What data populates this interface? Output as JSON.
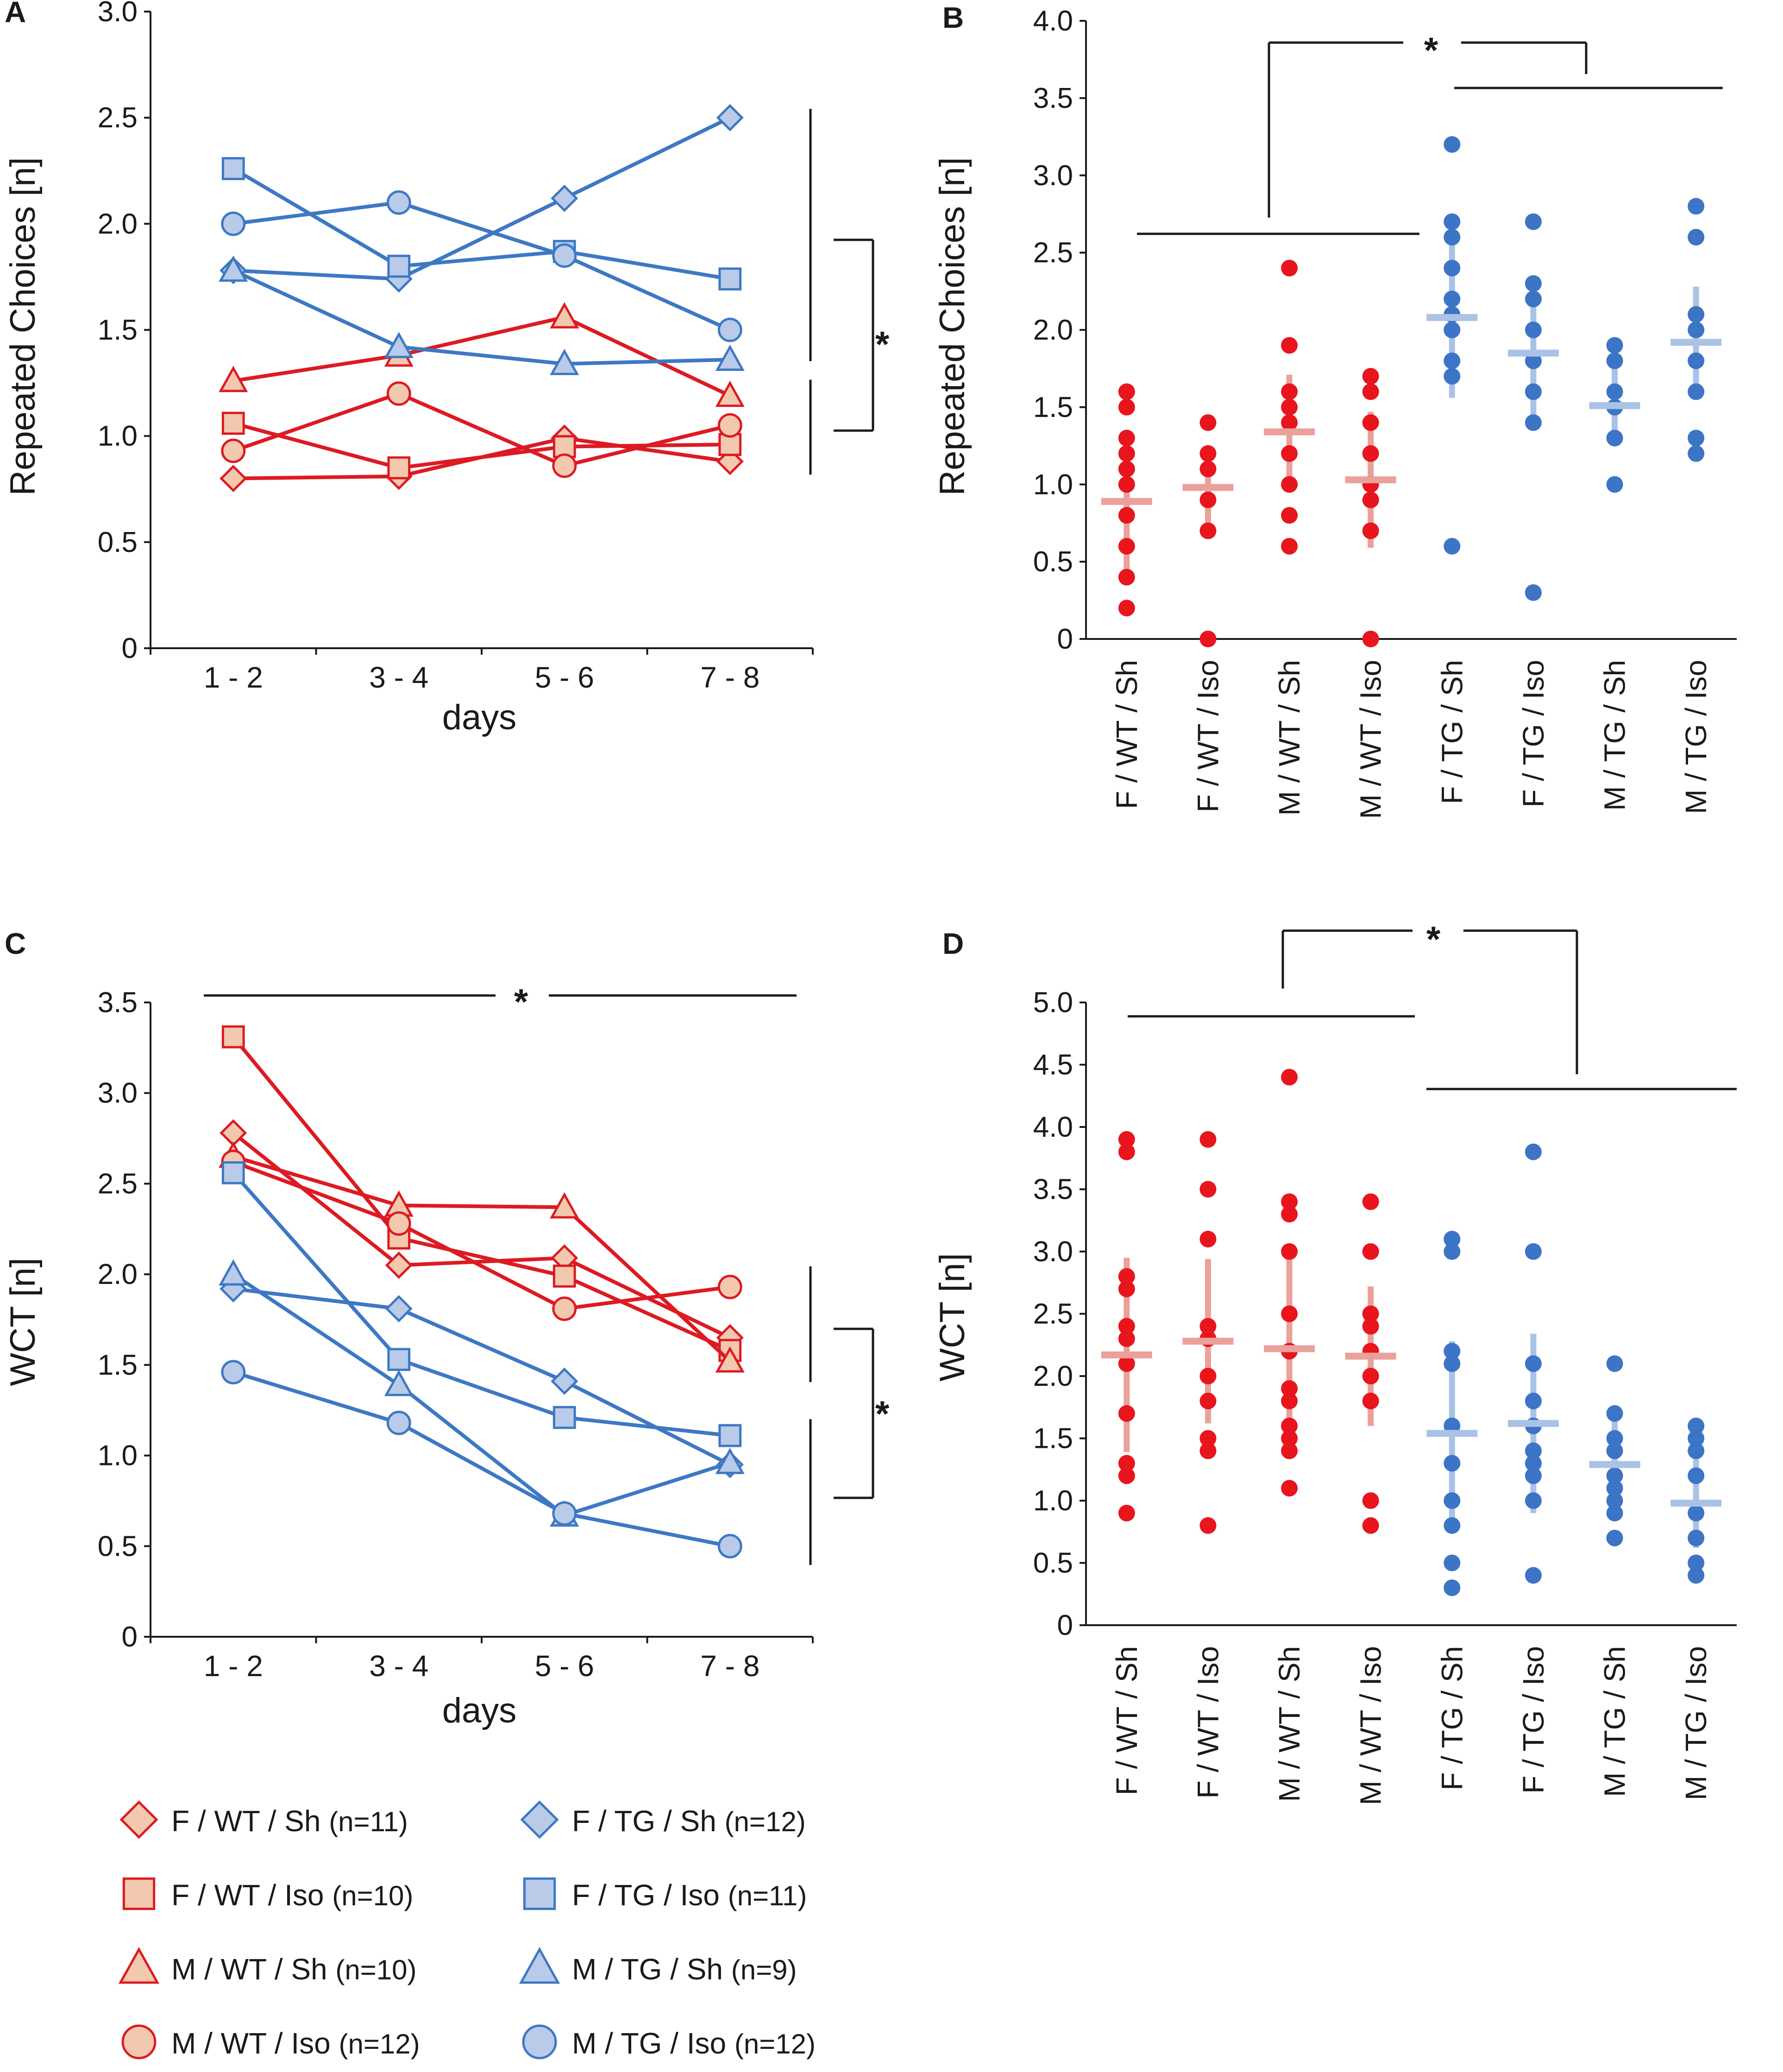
{
  "colors": {
    "wt_line": "#dd1a22",
    "wt_marker_fill": "#f2c9ae",
    "wt_marker_stroke": "#dd1a22",
    "tg_line": "#3d78c4",
    "tg_marker_fill": "#b9cbe9",
    "tg_marker_stroke": "#3d78c4",
    "wt_dot": "#e8151c",
    "tg_dot": "#3c74c6",
    "wt_mean": "#eaa19b",
    "tg_mean": "#a9c2e6",
    "axis": "#1a1a1a"
  },
  "panels": {
    "A": {
      "letter": "A",
      "ylabel": "Repeated Choices [n]",
      "xlabel": "days"
    },
    "B": {
      "letter": "B",
      "ylabel": "Repeated Choices [n]"
    },
    "C": {
      "letter": "C",
      "ylabel": "WCT [n]",
      "xlabel": "days"
    },
    "D": {
      "letter": "D",
      "ylabel": "WCT [n]"
    }
  },
  "significance_marker": "*",
  "legend": [
    {
      "group": "F / WT / Sh",
      "n": "(n=11)",
      "shape": "diamond",
      "genotype": "WT"
    },
    {
      "group": "F / WT / Iso",
      "n": "(n=10)",
      "shape": "square",
      "genotype": "WT"
    },
    {
      "group": "M / WT / Sh",
      "n": "(n=10)",
      "shape": "triangle",
      "genotype": "WT"
    },
    {
      "group": "M / WT / Iso",
      "n": "(n=12)",
      "shape": "circle",
      "genotype": "WT"
    },
    {
      "group": "F / TG / Sh",
      "n": "(n=12)",
      "shape": "diamond",
      "genotype": "TG"
    },
    {
      "group": "F / TG / Iso",
      "n": "(n=11)",
      "shape": "square",
      "genotype": "TG"
    },
    {
      "group": "M / TG / Sh",
      "n": "(n=9)",
      "shape": "triangle",
      "genotype": "TG"
    },
    {
      "group": "M / TG / Iso",
      "n": "(n=12)",
      "shape": "circle",
      "genotype": "TG"
    }
  ],
  "chart_data": [
    {
      "panel": "A",
      "type": "line",
      "xlabel": "days",
      "ylabel": "Repeated Choices [n]",
      "categories": [
        "1 - 2",
        "3 - 4",
        "5 - 6",
        "7 - 8"
      ],
      "ylim": [
        0,
        3.0
      ],
      "yticks": [
        0,
        0.5,
        1.0,
        1.5,
        2.0,
        2.5,
        3.0
      ],
      "ytick_labels": [
        "0",
        "0.5",
        "1.0",
        "1.5",
        "2.0",
        "2.5",
        "3.0"
      ],
      "series": [
        {
          "name": "F / WT / Sh",
          "shape": "diamond",
          "genotype": "WT",
          "values": [
            0.8,
            0.81,
            0.99,
            0.88
          ]
        },
        {
          "name": "F / WT / Iso",
          "shape": "square",
          "genotype": "WT",
          "values": [
            1.06,
            0.85,
            0.95,
            0.96
          ]
        },
        {
          "name": "M / WT / Sh",
          "shape": "triangle",
          "genotype": "WT",
          "values": [
            1.26,
            1.38,
            1.56,
            1.19
          ]
        },
        {
          "name": "M / WT / Iso",
          "shape": "circle",
          "genotype": "WT",
          "values": [
            0.93,
            1.2,
            0.86,
            1.05
          ]
        },
        {
          "name": "F / TG / Sh",
          "shape": "diamond",
          "genotype": "TG",
          "values": [
            1.78,
            1.74,
            2.12,
            2.5
          ]
        },
        {
          "name": "F / TG / Iso",
          "shape": "square",
          "genotype": "TG",
          "values": [
            2.26,
            1.8,
            1.87,
            1.74
          ]
        },
        {
          "name": "M / TG / Sh",
          "shape": "triangle",
          "genotype": "TG",
          "values": [
            1.78,
            1.42,
            1.34,
            1.36
          ]
        },
        {
          "name": "M / TG / Iso",
          "shape": "circle",
          "genotype": "TG",
          "values": [
            2.0,
            2.1,
            1.85,
            1.5
          ]
        }
      ]
    },
    {
      "panel": "B",
      "type": "scatter",
      "ylabel": "Repeated Choices [n]",
      "categories": [
        "F / WT / Sh",
        "F / WT / Iso",
        "M / WT / Sh",
        "M / WT / Iso",
        "F / TG / Sh",
        "F / TG / Iso",
        "M / TG / Sh",
        "M / TG / Iso"
      ],
      "ylim": [
        0,
        4.0
      ],
      "yticks": [
        0,
        0.5,
        1.0,
        1.5,
        2.0,
        2.5,
        3.0,
        3.5,
        4.0
      ],
      "ytick_labels": [
        "0",
        "0.5",
        "1.0",
        "1.5",
        "2.0",
        "2.5",
        "3.0",
        "3.5",
        "4.0"
      ],
      "groups": [
        {
          "name": "F / WT / Sh",
          "genotype": "WT",
          "points": [
            0.2,
            0.4,
            0.6,
            0.8,
            1.0,
            1.1,
            1.2,
            1.3,
            1.5,
            1.6
          ],
          "mean": 0.89,
          "error": [
            0.45,
            1.33
          ]
        },
        {
          "name": "F / WT / Iso",
          "genotype": "WT",
          "points": [
            0,
            0.7,
            0.9,
            1.1,
            1.2,
            1.4
          ],
          "mean": 0.98,
          "error": [
            0.75,
            1.21
          ]
        },
        {
          "name": "M / WT / Sh",
          "genotype": "WT",
          "points": [
            0.6,
            0.8,
            1.0,
            1.2,
            1.4,
            1.5,
            1.6,
            1.9,
            2.4
          ],
          "mean": 1.34,
          "error": [
            0.97,
            1.71
          ]
        },
        {
          "name": "M / WT / Iso",
          "genotype": "WT",
          "points": [
            0,
            0.7,
            0.9,
            1.0,
            1.2,
            1.4,
            1.6,
            1.7
          ],
          "mean": 1.03,
          "error": [
            0.59,
            1.47
          ]
        },
        {
          "name": "F / TG / Sh",
          "genotype": "TG",
          "points": [
            0.6,
            1.7,
            1.8,
            2.0,
            2.1,
            2.2,
            2.4,
            2.6,
            2.7,
            3.2
          ],
          "mean": 2.08,
          "error": [
            1.56,
            2.6
          ]
        },
        {
          "name": "F / TG / Iso",
          "genotype": "TG",
          "points": [
            0.3,
            1.4,
            1.6,
            1.8,
            2.0,
            2.2,
            2.3,
            2.7
          ],
          "mean": 1.85,
          "error": [
            1.44,
            2.26
          ]
        },
        {
          "name": "M / TG / Sh",
          "genotype": "TG",
          "points": [
            1.0,
            1.3,
            1.5,
            1.6,
            1.8,
            1.9
          ],
          "mean": 1.51,
          "error": [
            1.26,
            1.76
          ]
        },
        {
          "name": "M / TG / Iso",
          "genotype": "TG",
          "points": [
            1.2,
            1.3,
            1.6,
            1.8,
            2.0,
            2.1,
            2.6,
            2.8
          ],
          "mean": 1.92,
          "error": [
            1.55,
            2.28
          ]
        }
      ]
    },
    {
      "panel": "C",
      "type": "line",
      "xlabel": "days",
      "ylabel": "WCT [n]",
      "categories": [
        "1 - 2",
        "3 - 4",
        "5 - 6",
        "7 - 8"
      ],
      "ylim": [
        0,
        3.5
      ],
      "yticks": [
        0,
        0.5,
        1.0,
        1.5,
        2.0,
        2.5,
        3.0,
        3.5
      ],
      "ytick_labels": [
        "0",
        "0.5",
        "1.0",
        "1.5",
        "2.0",
        "2.5",
        "3.0",
        "3.5"
      ],
      "series": [
        {
          "name": "F / WT / Sh",
          "shape": "diamond",
          "genotype": "WT",
          "values": [
            2.78,
            2.05,
            2.09,
            1.65
          ]
        },
        {
          "name": "F / WT / Iso",
          "shape": "square",
          "genotype": "WT",
          "values": [
            3.31,
            2.2,
            1.99,
            1.58
          ]
        },
        {
          "name": "M / WT / Sh",
          "shape": "triangle",
          "genotype": "WT",
          "values": [
            2.65,
            2.38,
            2.37,
            1.52
          ]
        },
        {
          "name": "M / WT / Iso",
          "shape": "circle",
          "genotype": "WT",
          "values": [
            2.62,
            2.28,
            1.81,
            1.93
          ]
        },
        {
          "name": "F / TG / Sh",
          "shape": "diamond",
          "genotype": "TG",
          "values": [
            1.92,
            1.81,
            1.41,
            0.95
          ]
        },
        {
          "name": "F / TG / Iso",
          "shape": "square",
          "genotype": "TG",
          "values": [
            2.56,
            1.53,
            1.21,
            1.11
          ]
        },
        {
          "name": "M / TG / Sh",
          "shape": "triangle",
          "genotype": "TG",
          "values": [
            2.0,
            1.39,
            0.67,
            0.96
          ]
        },
        {
          "name": "M / TG / Iso",
          "shape": "circle",
          "genotype": "TG",
          "values": [
            1.46,
            1.18,
            0.68,
            0.5
          ]
        }
      ]
    },
    {
      "panel": "D",
      "type": "scatter",
      "ylabel": "WCT [n]",
      "categories": [
        "F / WT / Sh",
        "F / WT / Iso",
        "M / WT / Sh",
        "M / WT / Iso",
        "F / TG / Sh",
        "F / TG / Iso",
        "M / TG / Sh",
        "M / TG / Iso"
      ],
      "ylim": [
        0,
        5.0
      ],
      "yticks": [
        0,
        0.5,
        1.0,
        1.5,
        2.0,
        2.5,
        3.0,
        3.5,
        4.0,
        4.5,
        5.0
      ],
      "ytick_labels": [
        "0",
        "0.5",
        "1.0",
        "1.5",
        "2.0",
        "2.5",
        "3.0",
        "3.5",
        "4.0",
        "4.5",
        "5.0"
      ],
      "groups": [
        {
          "name": "F / WT / Sh",
          "genotype": "WT",
          "points": [
            0.9,
            1.2,
            1.3,
            1.7,
            2.1,
            2.3,
            2.4,
            2.7,
            2.8,
            3.8,
            3.9
          ],
          "mean": 2.17,
          "error": [
            1.39,
            2.95
          ]
        },
        {
          "name": "F / WT / Iso",
          "genotype": "WT",
          "points": [
            0.8,
            1.4,
            1.5,
            1.8,
            2.0,
            2.3,
            2.4,
            3.1,
            3.5,
            3.9
          ],
          "mean": 2.28,
          "error": [
            1.62,
            2.94
          ]
        },
        {
          "name": "M / WT / Sh",
          "genotype": "WT",
          "points": [
            1.1,
            1.4,
            1.5,
            1.6,
            1.8,
            1.9,
            2.2,
            2.5,
            3.0,
            3.3,
            3.4,
            4.4
          ],
          "mean": 2.22,
          "error": [
            1.45,
            2.99
          ]
        },
        {
          "name": "M / WT / Iso",
          "genotype": "WT",
          "points": [
            0.8,
            1.0,
            1.8,
            2.0,
            2.2,
            2.4,
            2.5,
            3.0,
            3.4
          ],
          "mean": 2.16,
          "error": [
            1.6,
            2.72
          ]
        },
        {
          "name": "F / TG / Sh",
          "genotype": "TG",
          "points": [
            0.3,
            0.5,
            0.8,
            1.0,
            1.3,
            1.6,
            2.1,
            2.2,
            3.0,
            3.1
          ],
          "mean": 1.54,
          "error": [
            0.8,
            2.28
          ]
        },
        {
          "name": "F / TG / Iso",
          "genotype": "TG",
          "points": [
            0.4,
            1.0,
            1.2,
            1.3,
            1.4,
            1.6,
            1.8,
            2.1,
            3.0,
            3.8
          ],
          "mean": 1.62,
          "error": [
            0.9,
            2.34
          ]
        },
        {
          "name": "M / TG / Sh",
          "genotype": "TG",
          "points": [
            0.7,
            0.9,
            1.0,
            1.1,
            1.2,
            1.4,
            1.5,
            1.7,
            2.1
          ],
          "mean": 1.29,
          "error": [
            0.92,
            1.66
          ]
        },
        {
          "name": "M / TG / Iso",
          "genotype": "TG",
          "points": [
            0.4,
            0.5,
            0.7,
            0.9,
            1.2,
            1.4,
            1.5,
            1.6
          ],
          "mean": 0.98,
          "error": [
            0.62,
            1.34
          ]
        }
      ]
    }
  ]
}
